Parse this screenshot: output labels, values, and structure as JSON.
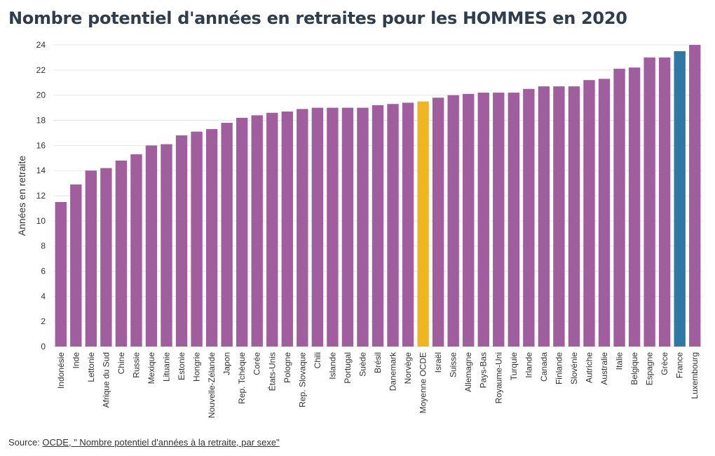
{
  "title": "Nombre potentiel d'années en retraites pour les HOMMES en 2020",
  "source": {
    "prefix": "Source: ",
    "link_text": "OCDE, \" Nombre potentiel d'années à la retraite, par sexe\""
  },
  "colors": {
    "default_bar": "#a05e9e",
    "oecd_average_bar": "#f0b51f",
    "france_bar": "#2e78a4",
    "gridline": "#e6e6e6",
    "text": "#333333"
  },
  "chart_data": {
    "type": "bar",
    "title": "Nombre potentiel d'années en retraites pour les HOMMES en 2020",
    "xlabel": "",
    "ylabel": "Années en retraite",
    "ylim": [
      0,
      24
    ],
    "yticks": [
      0,
      2,
      4,
      6,
      8,
      10,
      12,
      14,
      16,
      18,
      20,
      22,
      24
    ],
    "grid": true,
    "categories": [
      "Indonésie",
      "Inde",
      "Lettonie",
      "Afrique du Sud",
      "Chine",
      "Russie",
      "Mexique",
      "Lituanie",
      "Estonie",
      "Hongrie",
      "Nouvelle-Zélande",
      "Japon",
      "Rep. Tchèque",
      "Corée",
      "États-Unis",
      "Pologne",
      "Rep. Slovaque",
      "Chili",
      "Islande",
      "Portugal",
      "Suède",
      "Brésil",
      "Danemark",
      "Norvège",
      "Moyenne OCDE",
      "Israël",
      "Suisse",
      "Allemagne",
      "Pays-Bas",
      "Royaume-Uni",
      "Turquie",
      "Irlande",
      "Canada",
      "Finlande",
      "Slovénie",
      "Autriche",
      "Australie",
      "Italie",
      "Belgique",
      "Espagne",
      "Grèce",
      "France",
      "Luxembourg"
    ],
    "values": [
      11.5,
      12.9,
      14.0,
      14.2,
      14.8,
      15.3,
      16.0,
      16.1,
      16.8,
      17.1,
      17.3,
      17.8,
      18.2,
      18.4,
      18.6,
      18.7,
      18.9,
      19.0,
      19.0,
      19.0,
      19.0,
      19.2,
      19.3,
      19.4,
      19.5,
      19.8,
      20.0,
      20.1,
      20.2,
      20.2,
      20.2,
      20.5,
      20.7,
      20.7,
      20.7,
      21.2,
      21.3,
      22.1,
      22.2,
      23.0,
      23.0,
      23.5,
      24.0
    ],
    "highlights": {
      "Moyenne OCDE": "oecd_average_bar",
      "France": "france_bar"
    }
  }
}
